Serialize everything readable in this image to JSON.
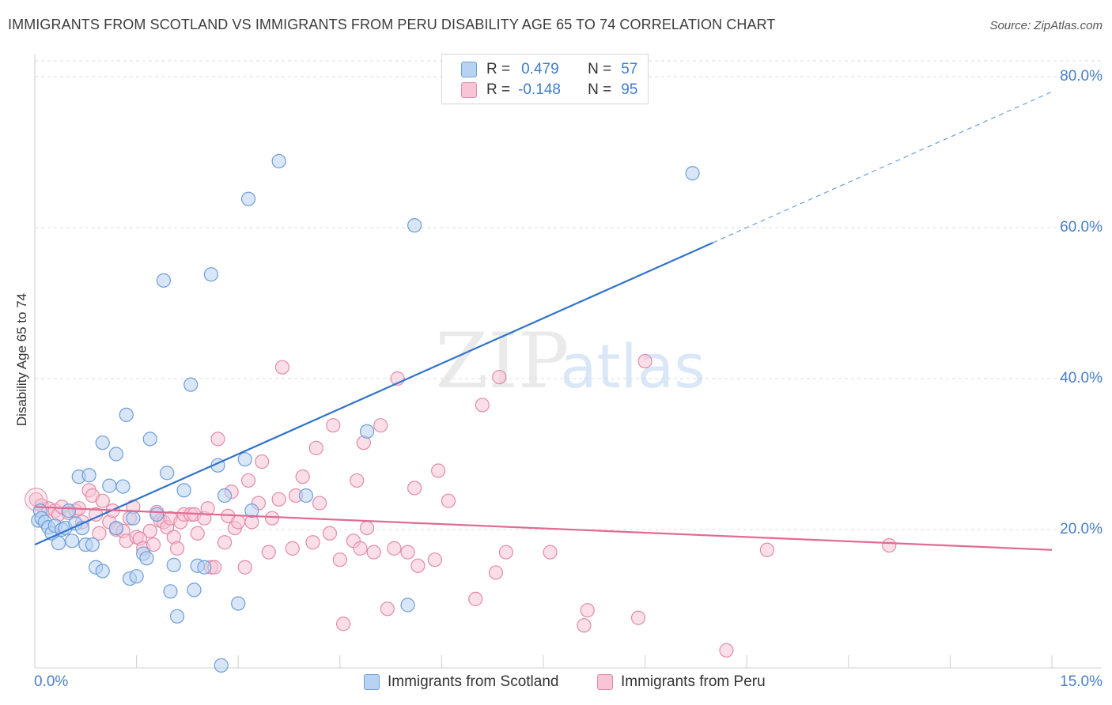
{
  "title": "IMMIGRANTS FROM SCOTLAND VS IMMIGRANTS FROM PERU DISABILITY AGE 65 TO 74 CORRELATION CHART",
  "source": "Source: ZipAtlas.com",
  "watermark": {
    "zip": "ZIP",
    "atlas": "atlas"
  },
  "legend": {
    "scotland": {
      "r_label": "R =",
      "r_value": "0.479",
      "n_label": "N =",
      "n_value": "57"
    },
    "peru": {
      "r_label": "R =",
      "r_value": "-0.148",
      "n_label": "N =",
      "n_value": "95"
    }
  },
  "chart_data": {
    "type": "scatter",
    "title": "IMMIGRANTS FROM SCOTLAND VS IMMIGRANTS FROM PERU DISABILITY AGE 65 TO 74 CORRELATION CHART",
    "xlabel": "",
    "ylabel": "Disability Age 65 to 74",
    "xlim": [
      0,
      15
    ],
    "ylim": [
      0,
      80
    ],
    "x_tick_labels": [
      "0.0%",
      "15.0%"
    ],
    "y_tick_labels": [
      "20.0%",
      "40.0%",
      "60.0%",
      "80.0%"
    ],
    "y_tick_values": [
      20,
      40,
      60,
      80
    ],
    "grid": true,
    "legend_position": "top-center",
    "colors": {
      "scotland": "#6d9ed9",
      "scotland_fill": "#b8d2f2",
      "scotland_line": "#2f72cc",
      "peru": "#e38aa8",
      "peru_fill": "#f7c5d5",
      "peru_line": "#e06b95"
    },
    "series": [
      {
        "name": "Immigrants from Scotland",
        "r": 0.479,
        "n": 57,
        "trend": {
          "x0": 0.0,
          "y0": 18.0,
          "x1": 10.0,
          "y1": 58.0,
          "dashed_to_x": 15.0,
          "dashed_to_y": 78.0
        },
        "points": [
          [
            0.05,
            21.2
          ],
          [
            0.08,
            22.5
          ],
          [
            0.1,
            21.5
          ],
          [
            0.15,
            21.0
          ],
          [
            0.2,
            20.3
          ],
          [
            0.25,
            19.5
          ],
          [
            0.3,
            20.5
          ],
          [
            0.35,
            18.2
          ],
          [
            0.4,
            20.0
          ],
          [
            0.45,
            20.2
          ],
          [
            0.5,
            22.5
          ],
          [
            0.55,
            18.5
          ],
          [
            0.6,
            20.8
          ],
          [
            0.65,
            27.0
          ],
          [
            0.7,
            20.2
          ],
          [
            0.75,
            18.0
          ],
          [
            0.8,
            27.2
          ],
          [
            0.85,
            18.0
          ],
          [
            0.9,
            15.0
          ],
          [
            1.0,
            14.5
          ],
          [
            1.0,
            31.5
          ],
          [
            1.1,
            25.8
          ],
          [
            1.2,
            20.2
          ],
          [
            1.2,
            30.0
          ],
          [
            1.3,
            25.7
          ],
          [
            1.35,
            35.2
          ],
          [
            1.4,
            13.5
          ],
          [
            1.45,
            21.5
          ],
          [
            1.5,
            13.8
          ],
          [
            1.6,
            16.8
          ],
          [
            1.65,
            16.2
          ],
          [
            1.7,
            32.0
          ],
          [
            1.8,
            22.0
          ],
          [
            1.9,
            53.0
          ],
          [
            1.95,
            27.5
          ],
          [
            2.0,
            11.8
          ],
          [
            2.05,
            15.3
          ],
          [
            2.1,
            8.5
          ],
          [
            2.2,
            25.2
          ],
          [
            2.3,
            39.2
          ],
          [
            2.35,
            12.0
          ],
          [
            2.4,
            15.2
          ],
          [
            2.5,
            15.0
          ],
          [
            2.6,
            53.8
          ],
          [
            2.7,
            28.5
          ],
          [
            2.75,
            2.0
          ],
          [
            2.8,
            24.5
          ],
          [
            3.0,
            10.2
          ],
          [
            3.1,
            29.3
          ],
          [
            3.15,
            63.8
          ],
          [
            3.2,
            22.5
          ],
          [
            3.6,
            68.8
          ],
          [
            4.0,
            24.5
          ],
          [
            4.9,
            33.0
          ],
          [
            5.5,
            10.0
          ],
          [
            5.6,
            60.3
          ],
          [
            9.7,
            67.2
          ]
        ]
      },
      {
        "name": "Immigrants from Peru",
        "r": -0.148,
        "n": 95,
        "trend": {
          "x0": 0.0,
          "y0": 23.0,
          "x1": 15.0,
          "y1": 17.3
        },
        "points": [
          [
            0.02,
            24.0
          ],
          [
            0.1,
            23.2
          ],
          [
            0.2,
            22.8
          ],
          [
            0.3,
            22.5
          ],
          [
            0.35,
            22.0
          ],
          [
            0.4,
            23.0
          ],
          [
            0.5,
            22.2
          ],
          [
            0.6,
            22.5
          ],
          [
            0.65,
            22.8
          ],
          [
            0.7,
            21.0
          ],
          [
            0.8,
            25.2
          ],
          [
            0.85,
            24.5
          ],
          [
            0.9,
            22.0
          ],
          [
            0.95,
            19.5
          ],
          [
            1.0,
            23.8
          ],
          [
            1.1,
            21.0
          ],
          [
            1.15,
            22.5
          ],
          [
            1.2,
            20.0
          ],
          [
            1.3,
            19.8
          ],
          [
            1.35,
            18.5
          ],
          [
            1.4,
            21.5
          ],
          [
            1.45,
            23.0
          ],
          [
            1.5,
            19.0
          ],
          [
            1.55,
            18.8
          ],
          [
            1.6,
            17.5
          ],
          [
            1.7,
            19.8
          ],
          [
            1.75,
            18.0
          ],
          [
            1.8,
            22.3
          ],
          [
            1.85,
            21.2
          ],
          [
            1.9,
            21.0
          ],
          [
            1.95,
            20.3
          ],
          [
            2.0,
            21.5
          ],
          [
            2.05,
            19.0
          ],
          [
            2.1,
            17.5
          ],
          [
            2.15,
            21.0
          ],
          [
            2.2,
            22.0
          ],
          [
            2.3,
            22.0
          ],
          [
            2.35,
            22.0
          ],
          [
            2.4,
            19.5
          ],
          [
            2.5,
            21.5
          ],
          [
            2.55,
            22.8
          ],
          [
            2.6,
            15.0
          ],
          [
            2.65,
            15.0
          ],
          [
            2.7,
            32.0
          ],
          [
            2.8,
            18.3
          ],
          [
            2.85,
            21.8
          ],
          [
            2.9,
            25.0
          ],
          [
            2.95,
            20.2
          ],
          [
            3.0,
            21.0
          ],
          [
            3.1,
            15.0
          ],
          [
            3.15,
            26.5
          ],
          [
            3.2,
            21.0
          ],
          [
            3.3,
            23.5
          ],
          [
            3.35,
            29.0
          ],
          [
            3.45,
            17.0
          ],
          [
            3.5,
            21.5
          ],
          [
            3.6,
            24.0
          ],
          [
            3.65,
            41.5
          ],
          [
            3.8,
            17.5
          ],
          [
            3.85,
            24.5
          ],
          [
            3.95,
            27.0
          ],
          [
            4.1,
            18.3
          ],
          [
            4.15,
            30.8
          ],
          [
            4.2,
            23.5
          ],
          [
            4.35,
            19.5
          ],
          [
            4.4,
            33.8
          ],
          [
            4.5,
            16.0
          ],
          [
            4.55,
            7.5
          ],
          [
            4.7,
            18.5
          ],
          [
            4.75,
            26.5
          ],
          [
            4.8,
            17.5
          ],
          [
            4.85,
            31.5
          ],
          [
            4.9,
            20.2
          ],
          [
            5.0,
            17.0
          ],
          [
            5.1,
            33.8
          ],
          [
            5.2,
            9.5
          ],
          [
            5.3,
            17.5
          ],
          [
            5.35,
            40.0
          ],
          [
            5.5,
            17.0
          ],
          [
            5.6,
            25.5
          ],
          [
            5.65,
            15.2
          ],
          [
            5.9,
            16.0
          ],
          [
            5.95,
            27.8
          ],
          [
            6.1,
            23.8
          ],
          [
            6.5,
            10.8
          ],
          [
            6.6,
            36.5
          ],
          [
            6.8,
            14.3
          ],
          [
            6.85,
            40.2
          ],
          [
            6.95,
            17.0
          ],
          [
            7.6,
            17.0
          ],
          [
            8.1,
            7.3
          ],
          [
            8.15,
            9.3
          ],
          [
            8.9,
            8.3
          ],
          [
            9.0,
            42.3
          ],
          [
            10.2,
            4.0
          ],
          [
            10.8,
            17.3
          ],
          [
            12.6,
            17.9
          ]
        ]
      }
    ]
  },
  "bottom_legend": {
    "scotland_label": "Immigrants from Scotland",
    "peru_label": "Immigrants from Peru"
  }
}
